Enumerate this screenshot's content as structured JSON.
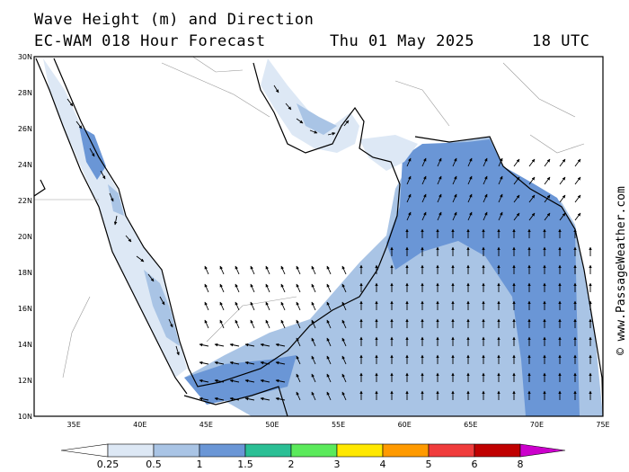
{
  "header": {
    "title": "Wave Height (m) and Direction",
    "model": "EC-WAM 018 Hour Forecast",
    "date": "Thu 01 May 2025",
    "time": "18 UTC"
  },
  "axes": {
    "lat_labels": [
      "30N",
      "28N",
      "26N",
      "24N",
      "22N",
      "20N",
      "18N",
      "16N",
      "14N",
      "12N",
      "10N"
    ],
    "lon_labels": [
      "35E",
      "40E",
      "45E",
      "50E",
      "55E",
      "60E",
      "65E",
      "70E",
      "75E"
    ],
    "lon_range": [
      32,
      75
    ],
    "lat_range": [
      10,
      30
    ]
  },
  "credit": "© www.PassageWeather.com",
  "legend": {
    "labels": [
      "0.25",
      "0.5",
      "1",
      "1.5",
      "2",
      "3",
      "4",
      "5",
      "6",
      "8"
    ],
    "colors": [
      "#ffffff",
      "#dde8f5",
      "#a9c4e5",
      "#6a96d6",
      "#2bbf95",
      "#5bea5b",
      "#ffe800",
      "#ff9a00",
      "#f03c3c",
      "#c00000",
      "#cc00cc"
    ]
  }
}
